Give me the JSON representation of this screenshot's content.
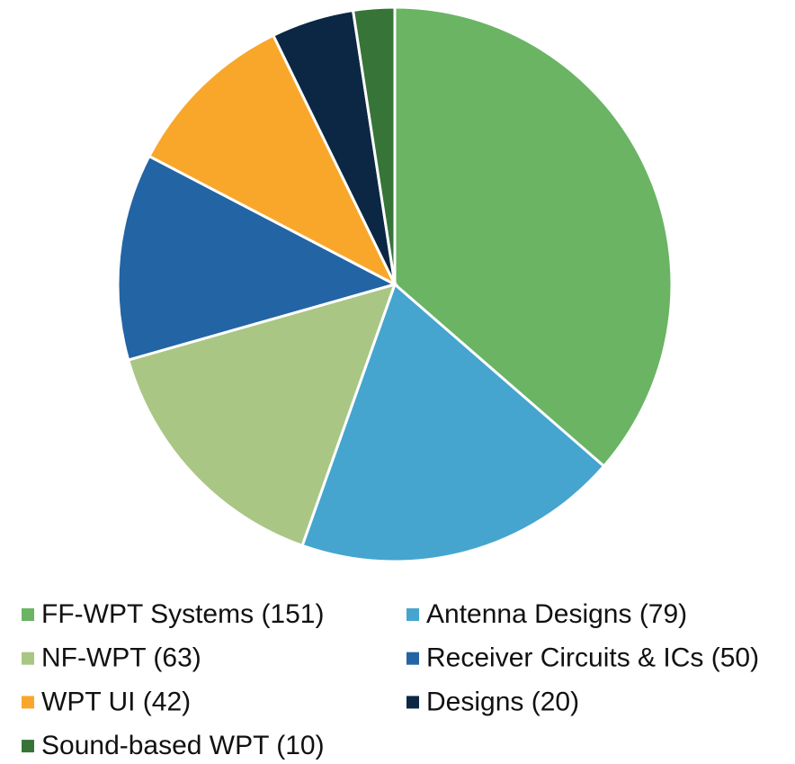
{
  "chart_data": {
    "type": "pie",
    "categories": [
      "FF-WPT Systems (151)",
      "Antenna Designs (79)",
      "NF-WPT (63)",
      "Receiver Circuits & ICs (50)",
      "WPT UI (42)",
      "Designs (20)",
      "Sound-based WPT (10)"
    ],
    "values": [
      151,
      79,
      63,
      50,
      42,
      20,
      10
    ],
    "colors": [
      "#6ab464",
      "#45a5cf",
      "#a9c685",
      "#2364a5",
      "#f9a72a",
      "#0b2743",
      "#377437"
    ],
    "legend": "bottom"
  }
}
